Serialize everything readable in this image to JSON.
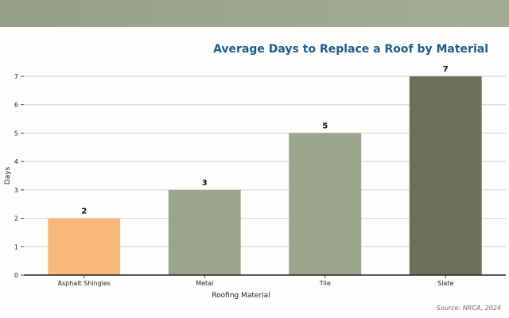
{
  "chart_data": {
    "type": "bar",
    "title": "Average Days to Replace a Roof by Material",
    "xlabel": "Roofing Material",
    "ylabel": "Days",
    "categories": [
      "Asphalt Shingles",
      "Metal",
      "Tile",
      "Slate"
    ],
    "values": [
      2,
      3,
      5,
      7
    ],
    "data_labels": [
      "2",
      "3",
      "5",
      "7"
    ],
    "yticks": [
      "0",
      "1",
      "2",
      "3",
      "4",
      "5",
      "6",
      "7"
    ],
    "ylim": [
      0,
      7
    ],
    "grid": "horizontal",
    "legend": "none",
    "bar_colors": [
      "#f7b97b",
      "#9da48e",
      "#9da48e",
      "#6b7159"
    ]
  },
  "source_note": "Source: NRCA, 2024",
  "colors": {
    "title": "#1f5a8a",
    "top_band": "#9ca58f",
    "grid": "#cfcfcf",
    "axis": "#222222"
  }
}
